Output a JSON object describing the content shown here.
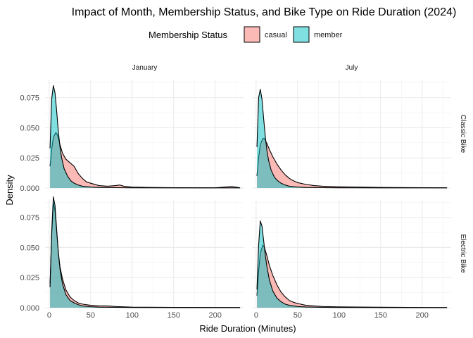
{
  "chart_data": {
    "type": "area",
    "title": "Impact of Month, Membership Status, and Bike Type on Ride Duration (2024)",
    "xlabel": "Ride Duration (Minutes)",
    "ylabel": "Density",
    "xlim": [
      -5,
      235
    ],
    "ylim": [
      0,
      0.09
    ],
    "x_ticks": [
      0,
      50,
      100,
      150,
      200
    ],
    "y_ticks": [
      0.0,
      0.025,
      0.05,
      0.075
    ],
    "y_tick_labels": [
      "0.000",
      "0.025",
      "0.050",
      "0.075"
    ],
    "grid": true,
    "legend": {
      "title": "Membership Status",
      "position": "top",
      "entries": [
        {
          "label": "casual",
          "color": "#F8766D"
        },
        {
          "label": "member",
          "color": "#00BFC4"
        }
      ]
    },
    "columns": [
      "January",
      "July"
    ],
    "rows": [
      "Classic Bike",
      "Electric Bike"
    ],
    "panels": [
      {
        "month": "January",
        "bike": "Classic Bike",
        "series": [
          {
            "name": "casual",
            "x": [
              1,
              3,
              5,
              8,
              10,
              13,
              16,
              20,
              25,
              30,
              35,
              40,
              45,
              50,
              60,
              70,
              80,
              85,
              90,
              100,
              120,
              150,
              200,
              220,
              230
            ],
            "y": [
              0.018,
              0.032,
              0.042,
              0.046,
              0.044,
              0.036,
              0.029,
              0.024,
              0.021,
              0.018,
              0.012,
              0.008,
              0.005,
              0.004,
              0.002,
              0.0015,
              0.002,
              0.0025,
              0.0015,
              0.0008,
              0.0005,
              0.0003,
              0.0002,
              0.0012,
              0.0002
            ]
          },
          {
            "name": "member",
            "x": [
              1,
              3,
              5,
              7,
              9,
              11,
              13,
              15,
              18,
              22,
              26,
              30,
              35,
              40,
              50,
              60,
              80,
              100,
              150,
              200,
              230
            ],
            "y": [
              0.033,
              0.074,
              0.085,
              0.079,
              0.064,
              0.047,
              0.034,
              0.025,
              0.016,
              0.01,
              0.006,
              0.004,
              0.0025,
              0.0015,
              0.0008,
              0.0005,
              0.0003,
              0.0002,
              0.0001,
              0.0001,
              0.0001
            ]
          }
        ]
      },
      {
        "month": "July",
        "bike": "Classic Bike",
        "series": [
          {
            "name": "casual",
            "x": [
              1,
              3,
              5,
              8,
              10,
              13,
              16,
              20,
              25,
              30,
              35,
              40,
              45,
              50,
              60,
              70,
              80,
              100,
              150,
              200,
              230
            ],
            "y": [
              0.01,
              0.025,
              0.036,
              0.041,
              0.041,
              0.037,
              0.032,
              0.026,
              0.02,
              0.015,
              0.011,
              0.008,
              0.006,
              0.0045,
              0.003,
              0.002,
              0.0015,
              0.001,
              0.0005,
              0.0003,
              0.0002
            ]
          },
          {
            "name": "member",
            "x": [
              1,
              3,
              5,
              7,
              9,
              11,
              13,
              15,
              18,
              22,
              26,
              30,
              35,
              40,
              50,
              60,
              80,
              100,
              150,
              200,
              230
            ],
            "y": [
              0.034,
              0.075,
              0.082,
              0.074,
              0.058,
              0.043,
              0.031,
              0.023,
              0.015,
              0.009,
              0.006,
              0.004,
              0.0025,
              0.0015,
              0.0008,
              0.0005,
              0.0003,
              0.0002,
              0.0001,
              0.0001,
              0.0001
            ]
          }
        ]
      },
      {
        "month": "January",
        "bike": "Electric Bike",
        "series": [
          {
            "name": "casual",
            "x": [
              1,
              3,
              5,
              7,
              9,
              11,
              13,
              16,
              20,
              25,
              30,
              35,
              40,
              50,
              60,
              70,
              80,
              100,
              150,
              200,
              230
            ],
            "y": [
              0.02,
              0.06,
              0.087,
              0.08,
              0.063,
              0.046,
              0.034,
              0.024,
              0.015,
              0.009,
              0.006,
              0.004,
              0.003,
              0.002,
              0.0015,
              0.0015,
              0.001,
              0.0005,
              0.0003,
              0.0002,
              0.0001
            ]
          },
          {
            "name": "member",
            "x": [
              1,
              3,
              5,
              7,
              9,
              11,
              13,
              16,
              20,
              25,
              30,
              35,
              40,
              50,
              60,
              80,
              100,
              150,
              200,
              230
            ],
            "y": [
              0.017,
              0.063,
              0.092,
              0.085,
              0.065,
              0.046,
              0.032,
              0.02,
              0.011,
              0.006,
              0.004,
              0.0025,
              0.0015,
              0.0008,
              0.0005,
              0.0003,
              0.0002,
              0.0001,
              0.0001,
              0.0001
            ]
          }
        ]
      },
      {
        "month": "July",
        "bike": "Electric Bike",
        "series": [
          {
            "name": "casual",
            "x": [
              1,
              3,
              5,
              8,
              10,
              13,
              16,
              20,
              25,
              30,
              35,
              40,
              45,
              50,
              60,
              70,
              80,
              100,
              150,
              200,
              230
            ],
            "y": [
              0.01,
              0.03,
              0.045,
              0.052,
              0.05,
              0.043,
              0.035,
              0.027,
              0.019,
              0.013,
              0.009,
              0.006,
              0.0045,
              0.0035,
              0.002,
              0.0015,
              0.001,
              0.0007,
              0.0004,
              0.0002,
              0.0001
            ]
          },
          {
            "name": "member",
            "x": [
              1,
              3,
              5,
              7,
              9,
              11,
              13,
              16,
              20,
              25,
              30,
              35,
              40,
              50,
              60,
              80,
              100,
              150,
              200,
              230
            ],
            "y": [
              0.015,
              0.052,
              0.072,
              0.068,
              0.056,
              0.044,
              0.034,
              0.023,
              0.014,
              0.008,
              0.005,
              0.003,
              0.002,
              0.001,
              0.0006,
              0.0003,
              0.0002,
              0.0001,
              0.0001,
              0.0001
            ]
          }
        ]
      }
    ]
  }
}
